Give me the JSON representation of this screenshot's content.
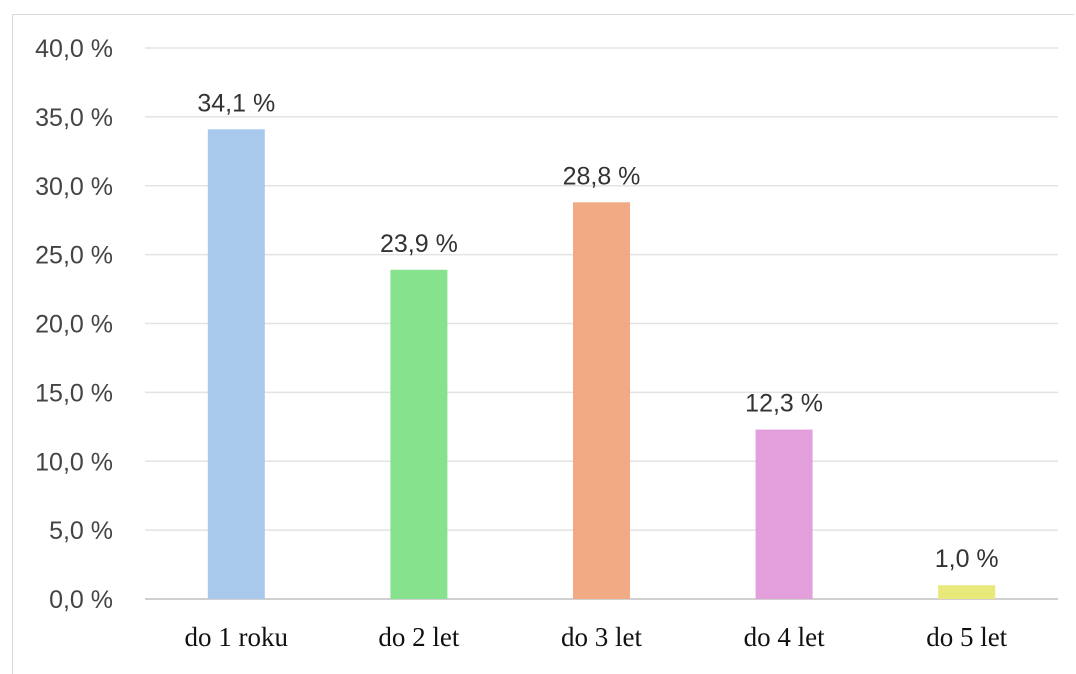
{
  "chart_data": {
    "type": "bar",
    "categories": [
      "do 1 roku",
      "do 2 let",
      "do 3 let",
      "do 4 let",
      "do 5 let"
    ],
    "values": [
      34.1,
      23.9,
      28.8,
      12.3,
      1.0
    ],
    "data_labels": [
      "34,1 %",
      "23,9 %",
      "28,8 %",
      "12,3 %",
      "1,0 %"
    ],
    "colors": [
      "#a8c8ec",
      "#86e28c",
      "#f2aa84",
      "#e39fdc",
      "#e9e87a"
    ],
    "ylim": [
      0,
      40
    ],
    "yticks": [
      0,
      5,
      10,
      15,
      20,
      25,
      30,
      35,
      40
    ],
    "ytick_labels": [
      "0,0 %",
      "5,0 %",
      "10,0 %",
      "15,0 %",
      "20,0 %",
      "25,0 %",
      "30,0 %",
      "35,0 %",
      "40,0 %"
    ],
    "grid": true,
    "title": "",
    "xlabel": "",
    "ylabel": ""
  }
}
